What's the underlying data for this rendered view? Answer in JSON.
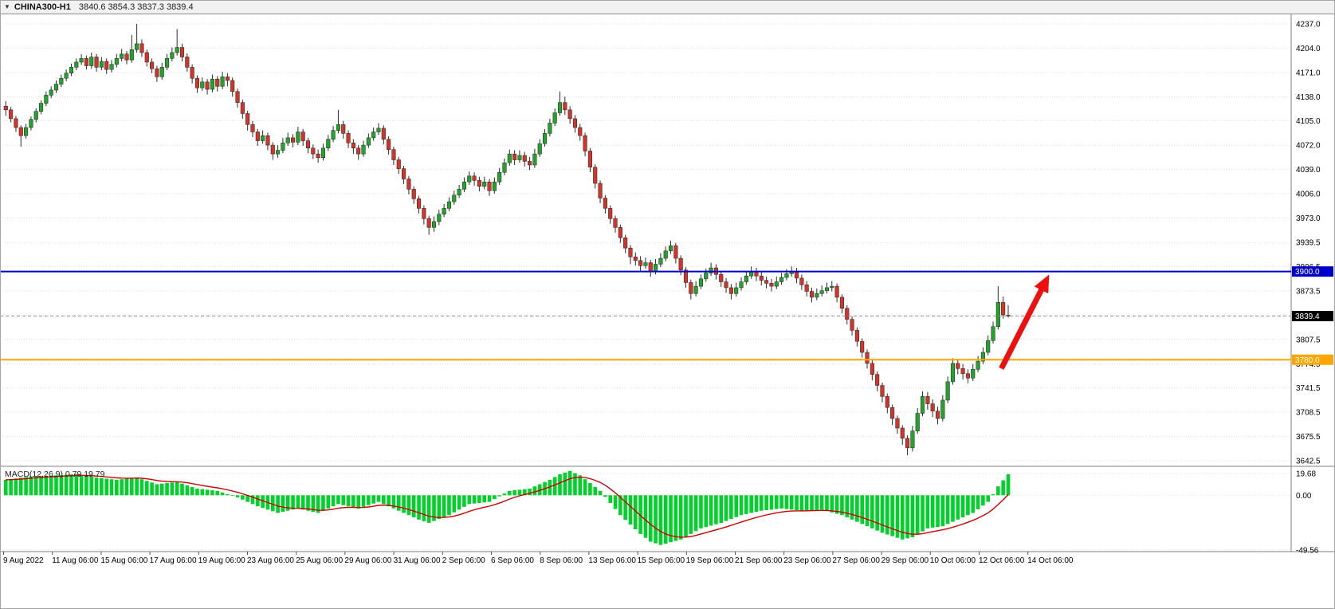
{
  "header": {
    "dropdown_icon": "▼",
    "title": "CHINA300-H1",
    "quote": "3840.6 3854.3 3837.3 3839.4"
  },
  "chart_data": {
    "type": "candlestick",
    "symbol": "CHINA300-",
    "timeframe": "H1",
    "ohlc_current": {
      "open": 3840.6,
      "high": 3854.3,
      "low": 3837.3,
      "close": 3839.4
    },
    "price_axis": {
      "ylim": [
        3642.5,
        4237.0
      ],
      "grid": "dotted",
      "ticks": [
        "4237.0",
        "4204.0",
        "4171.0",
        "4138.0",
        "4105.0",
        "4072.0",
        "4039.0",
        "4006.0",
        "3973.0",
        "3939.5",
        "3906.5",
        "3873.5",
        "3840.5",
        "3807.5",
        "3774.5",
        "3741.5",
        "3708.5",
        "3675.5",
        "3642.5"
      ]
    },
    "time_axis": {
      "labels": [
        "9 Aug 2022",
        "11 Aug 06:00",
        "15 Aug 06:00",
        "17 Aug 06:00",
        "19 Aug 06:00",
        "23 Aug 06:00",
        "25 Aug 06:00",
        "29 Aug 06:00",
        "31 Aug 06:00",
        "2 Sep 06:00",
        "6 Sep 06:00",
        "8 Sep 06:00",
        "13 Sep 06:00",
        "15 Sep 06:00",
        "19 Sep 06:00",
        "21 Sep 06:00",
        "23 Sep 06:00",
        "27 Sep 06:00",
        "29 Sep 06:00",
        "10 Oct 06:00",
        "12 Oct 06:00",
        "14 Oct 06:00"
      ]
    },
    "colors": {
      "background": "#ffffff",
      "grid": "#dedede",
      "axis_text": "#000000",
      "up": "#23a32c",
      "down": "#cf352b",
      "wick": "#2b2b2b",
      "body_outline": "#222222"
    },
    "candles": [
      [
        4125,
        4132,
        4112,
        4120
      ],
      [
        4120,
        4124,
        4103,
        4108
      ],
      [
        4108,
        4112,
        4090,
        4096
      ],
      [
        4096,
        4099,
        4070,
        4085
      ],
      [
        4085,
        4101,
        4081,
        4096
      ],
      [
        4096,
        4111,
        4092,
        4107
      ],
      [
        4107,
        4122,
        4103,
        4118
      ],
      [
        4118,
        4133,
        4114,
        4129
      ],
      [
        4129,
        4145,
        4125,
        4140
      ],
      [
        4140,
        4152,
        4136,
        4147
      ],
      [
        4147,
        4160,
        4143,
        4155
      ],
      [
        4155,
        4168,
        4151,
        4163
      ],
      [
        4163,
        4175,
        4159,
        4170
      ],
      [
        4170,
        4183,
        4166,
        4178
      ],
      [
        4178,
        4190,
        4174,
        4185
      ],
      [
        4185,
        4196,
        4181,
        4190
      ],
      [
        4190,
        4194,
        4175,
        4180
      ],
      [
        4180,
        4198,
        4176,
        4192
      ],
      [
        4192,
        4196,
        4172,
        4178
      ],
      [
        4178,
        4192,
        4174,
        4186
      ],
      [
        4186,
        4190,
        4169,
        4175
      ],
      [
        4175,
        4188,
        4171,
        4182
      ],
      [
        4182,
        4196,
        4178,
        4190
      ],
      [
        4190,
        4203,
        4186,
        4196
      ],
      [
        4196,
        4200,
        4182,
        4188
      ],
      [
        4188,
        4222,
        4184,
        4202
      ],
      [
        4202,
        4237,
        4198,
        4210
      ],
      [
        4210,
        4216,
        4192,
        4198
      ],
      [
        4198,
        4202,
        4179,
        4185
      ],
      [
        4185,
        4190,
        4170,
        4176
      ],
      [
        4176,
        4180,
        4158,
        4165
      ],
      [
        4165,
        4184,
        4161,
        4178
      ],
      [
        4178,
        4196,
        4174,
        4190
      ],
      [
        4190,
        4205,
        4186,
        4198
      ],
      [
        4198,
        4230,
        4194,
        4205
      ],
      [
        4205,
        4210,
        4186,
        4192
      ],
      [
        4192,
        4197,
        4172,
        4178
      ],
      [
        4178,
        4182,
        4156,
        4163
      ],
      [
        4163,
        4167,
        4143,
        4150
      ],
      [
        4150,
        4164,
        4146,
        4158
      ],
      [
        4158,
        4162,
        4141,
        4148
      ],
      [
        4148,
        4168,
        4144,
        4162
      ],
      [
        4162,
        4166,
        4145,
        4152
      ],
      [
        4152,
        4172,
        4148,
        4165
      ],
      [
        4165,
        4170,
        4152,
        4160
      ],
      [
        4160,
        4164,
        4138,
        4145
      ],
      [
        4145,
        4149,
        4123,
        4130
      ],
      [
        4130,
        4134,
        4108,
        4115
      ],
      [
        4115,
        4119,
        4092,
        4100
      ],
      [
        4100,
        4105,
        4083,
        4090
      ],
      [
        4090,
        4094,
        4071,
        4078
      ],
      [
        4078,
        4092,
        4074,
        4085
      ],
      [
        4085,
        4089,
        4065,
        4072
      ],
      [
        4072,
        4076,
        4052,
        4060
      ],
      [
        4060,
        4072,
        4055,
        4065
      ],
      [
        4065,
        4082,
        4061,
        4075
      ],
      [
        4075,
        4089,
        4071,
        4082
      ],
      [
        4082,
        4087,
        4069,
        4076
      ],
      [
        4076,
        4097,
        4072,
        4090
      ],
      [
        4090,
        4094,
        4071,
        4078
      ],
      [
        4078,
        4082,
        4061,
        4068
      ],
      [
        4068,
        4073,
        4053,
        4060
      ],
      [
        4060,
        4066,
        4048,
        4055
      ],
      [
        4055,
        4074,
        4051,
        4068
      ],
      [
        4068,
        4086,
        4064,
        4080
      ],
      [
        4080,
        4098,
        4076,
        4092
      ],
      [
        4092,
        4120,
        4088,
        4100
      ],
      [
        4100,
        4105,
        4081,
        4088
      ],
      [
        4088,
        4092,
        4068,
        4075
      ],
      [
        4075,
        4080,
        4060,
        4068
      ],
      [
        4068,
        4072,
        4052,
        4060
      ],
      [
        4060,
        4078,
        4056,
        4072
      ],
      [
        4072,
        4088,
        4068,
        4082
      ],
      [
        4082,
        4096,
        4078,
        4090
      ],
      [
        4090,
        4102,
        4086,
        4095
      ],
      [
        4095,
        4099,
        4073,
        4080
      ],
      [
        4080,
        4084,
        4059,
        4066
      ],
      [
        4066,
        4070,
        4045,
        4052
      ],
      [
        4052,
        4056,
        4033,
        4040
      ],
      [
        4040,
        4044,
        4019,
        4026
      ],
      [
        4026,
        4030,
        4005,
        4012
      ],
      [
        4012,
        4016,
        3992,
        3999
      ],
      [
        3999,
        4003,
        3979,
        3986
      ],
      [
        3986,
        3990,
        3964,
        3972
      ],
      [
        3972,
        3976,
        3950,
        3960
      ],
      [
        3960,
        3975,
        3954,
        3968
      ],
      [
        3968,
        3984,
        3963,
        3978
      ],
      [
        3978,
        3992,
        3974,
        3986
      ],
      [
        3986,
        4001,
        3982,
        3995
      ],
      [
        3995,
        4010,
        3991,
        4004
      ],
      [
        4004,
        4018,
        4000,
        4012
      ],
      [
        4012,
        4028,
        4008,
        4022
      ],
      [
        4022,
        4036,
        4018,
        4030
      ],
      [
        4030,
        4035,
        4017,
        4024
      ],
      [
        4024,
        4029,
        4009,
        4016
      ],
      [
        4016,
        4029,
        4012,
        4022
      ],
      [
        4022,
        4026,
        4003,
        4010
      ],
      [
        4010,
        4028,
        4006,
        4022
      ],
      [
        4022,
        4041,
        4018,
        4035
      ],
      [
        4035,
        4054,
        4031,
        4048
      ],
      [
        4048,
        4066,
        4044,
        4060
      ],
      [
        4060,
        4065,
        4045,
        4052
      ],
      [
        4052,
        4065,
        4048,
        4058
      ],
      [
        4058,
        4063,
        4043,
        4050
      ],
      [
        4050,
        4056,
        4038,
        4045
      ],
      [
        4045,
        4067,
        4041,
        4060
      ],
      [
        4060,
        4080,
        4056,
        4074
      ],
      [
        4074,
        4094,
        4070,
        4088
      ],
      [
        4088,
        4108,
        4084,
        4102
      ],
      [
        4102,
        4122,
        4098,
        4116
      ],
      [
        4116,
        4145,
        4112,
        4130
      ],
      [
        4130,
        4138,
        4113,
        4120
      ],
      [
        4120,
        4125,
        4101,
        4108
      ],
      [
        4108,
        4113,
        4089,
        4096
      ],
      [
        4096,
        4101,
        4078,
        4085
      ],
      [
        4085,
        4089,
        4057,
        4064
      ],
      [
        4064,
        4068,
        4035,
        4042
      ],
      [
        4042,
        4046,
        4013,
        4020
      ],
      [
        4020,
        4024,
        3993,
        4000
      ],
      [
        4000,
        4004,
        3979,
        3986
      ],
      [
        3986,
        3990,
        3965,
        3972
      ],
      [
        3972,
        3976,
        3953,
        3960
      ],
      [
        3960,
        3964,
        3939,
        3946
      ],
      [
        3946,
        3950,
        3925,
        3932
      ],
      [
        3932,
        3936,
        3910,
        3920
      ],
      [
        3920,
        3926,
        3908,
        3915
      ],
      [
        3915,
        3921,
        3901,
        3908
      ],
      [
        3908,
        3919,
        3904,
        3912
      ],
      [
        3912,
        3916,
        3893,
        3900
      ],
      [
        3900,
        3917,
        3896,
        3910
      ],
      [
        3910,
        3925,
        3906,
        3918
      ],
      [
        3918,
        3934,
        3914,
        3928
      ],
      [
        3928,
        3942,
        3924,
        3935
      ],
      [
        3935,
        3939,
        3911,
        3918
      ],
      [
        3918,
        3922,
        3895,
        3902
      ],
      [
        3902,
        3906,
        3878,
        3885
      ],
      [
        3885,
        3889,
        3862,
        3870
      ],
      [
        3870,
        3887,
        3866,
        3880
      ],
      [
        3880,
        3896,
        3876,
        3890
      ],
      [
        3890,
        3904,
        3886,
        3898
      ],
      [
        3898,
        3912,
        3894,
        3905
      ],
      [
        3905,
        3910,
        3889,
        3896
      ],
      [
        3896,
        3900,
        3879,
        3886
      ],
      [
        3886,
        3891,
        3871,
        3878
      ],
      [
        3878,
        3883,
        3862,
        3870
      ],
      [
        3870,
        3885,
        3866,
        3878
      ],
      [
        3878,
        3892,
        3874,
        3886
      ],
      [
        3886,
        3900,
        3882,
        3894
      ],
      [
        3894,
        3907,
        3890,
        3900
      ],
      [
        3900,
        3905,
        3887,
        3894
      ],
      [
        3894,
        3899,
        3881,
        3888
      ],
      [
        3888,
        3893,
        3877,
        3884
      ],
      [
        3884,
        3890,
        3873,
        3880
      ],
      [
        3880,
        3893,
        3876,
        3886
      ],
      [
        3886,
        3898,
        3882,
        3892
      ],
      [
        3892,
        3903,
        3888,
        3897
      ],
      [
        3897,
        3907,
        3893,
        3900
      ],
      [
        3900,
        3905,
        3884,
        3891
      ],
      [
        3891,
        3896,
        3875,
        3882
      ],
      [
        3882,
        3887,
        3866,
        3873
      ],
      [
        3873,
        3878,
        3858,
        3865
      ],
      [
        3865,
        3877,
        3861,
        3870
      ],
      [
        3870,
        3881,
        3866,
        3874
      ],
      [
        3874,
        3885,
        3870,
        3878
      ],
      [
        3878,
        3887,
        3873,
        3880
      ],
      [
        3880,
        3884,
        3858,
        3865
      ],
      [
        3865,
        3869,
        3843,
        3850
      ],
      [
        3850,
        3854,
        3828,
        3835
      ],
      [
        3835,
        3839,
        3813,
        3820
      ],
      [
        3820,
        3824,
        3798,
        3805
      ],
      [
        3805,
        3809,
        3783,
        3790
      ],
      [
        3790,
        3794,
        3768,
        3775
      ],
      [
        3775,
        3779,
        3752,
        3760
      ],
      [
        3760,
        3764,
        3737,
        3745
      ],
      [
        3745,
        3749,
        3722,
        3730
      ],
      [
        3730,
        3734,
        3707,
        3715
      ],
      [
        3715,
        3719,
        3691,
        3700
      ],
      [
        3700,
        3704,
        3679,
        3687
      ],
      [
        3687,
        3691,
        3664,
        3673
      ],
      [
        3673,
        3677,
        3650,
        3660
      ],
      [
        3660,
        3690,
        3655,
        3683
      ],
      [
        3683,
        3714,
        3679,
        3707
      ],
      [
        3707,
        3737,
        3703,
        3730
      ],
      [
        3730,
        3736,
        3712,
        3720
      ],
      [
        3720,
        3726,
        3702,
        3710
      ],
      [
        3710,
        3716,
        3692,
        3700
      ],
      [
        3700,
        3732,
        3696,
        3725
      ],
      [
        3725,
        3757,
        3721,
        3750
      ],
      [
        3750,
        3782,
        3746,
        3775
      ],
      [
        3775,
        3781,
        3760,
        3768
      ],
      [
        3768,
        3774,
        3753,
        3761
      ],
      [
        3761,
        3767,
        3748,
        3755
      ],
      [
        3755,
        3774,
        3751,
        3767
      ],
      [
        3767,
        3785,
        3763,
        3778
      ],
      [
        3778,
        3797,
        3774,
        3790
      ],
      [
        3790,
        3813,
        3786,
        3806
      ],
      [
        3806,
        3832,
        3802,
        3825
      ],
      [
        3825,
        3880,
        3821,
        3858
      ],
      [
        3858,
        3866,
        3836,
        3841
      ],
      [
        3840.6,
        3854.3,
        3837.3,
        3839.4
      ]
    ],
    "levels": [
      {
        "name": "resistance-line",
        "price": 3900.0,
        "label": "3900.0",
        "color": "#0000cd",
        "label_bg": "#0000cd",
        "style": "solid",
        "width": 2
      },
      {
        "name": "support-line",
        "price": 3780.0,
        "label": "3780.0",
        "color": "#ffa500",
        "label_bg": "#ffa500",
        "style": "solid",
        "width": 2
      },
      {
        "name": "bid-price-line",
        "price": 3839.4,
        "label": "3839.4",
        "color": "#9a9a9a",
        "label_bg": "#000000",
        "style": "dashed",
        "width": 1
      }
    ],
    "annotation_arrow": {
      "color": "#ee0f0f",
      "from": {
        "index": 198,
        "price": 3768
      },
      "to": {
        "index": 207.5,
        "price": 3896
      }
    },
    "indicator": {
      "label": "MACD(12,26,9) 0.79 19.79",
      "ylim": [
        -49.56,
        24
      ],
      "ticks": [
        "19.68",
        "0.00",
        "-49.56"
      ],
      "signal_period": 9,
      "colors": {
        "histogram": "#00d22a",
        "signal": "#cc0000"
      },
      "histogram": [
        14,
        14.6,
        15.2,
        15.8,
        16.4,
        17,
        17.2,
        17.4,
        17.6,
        17.8,
        18,
        18.3,
        18.5,
        18.8,
        19,
        18.3,
        17.5,
        16.8,
        16,
        15.5,
        15,
        14.5,
        14,
        14.5,
        15,
        15.5,
        16,
        14.5,
        13,
        11.5,
        10,
        10.5,
        11,
        11.5,
        12,
        10.5,
        9,
        7.5,
        6,
        5.5,
        5,
        4.5,
        4,
        2.5,
        1,
        -0.5,
        -2,
        -4,
        -6,
        -8,
        -10,
        -11.5,
        -13,
        -14.5,
        -16,
        -15,
        -14,
        -13,
        -12,
        -13,
        -14,
        -15,
        -16,
        -14,
        -12,
        -10,
        -8,
        -9,
        -10,
        -11,
        -12,
        -10.5,
        -9,
        -7.5,
        -6,
        -8,
        -10,
        -12,
        -14,
        -16,
        -18,
        -20,
        -22,
        -23.5,
        -25,
        -23.3,
        -21.5,
        -19.8,
        -18,
        -15.5,
        -13,
        -10.5,
        -8,
        -7.5,
        -7,
        -6.5,
        -6,
        -3.5,
        -1,
        1.5,
        4,
        4.5,
        5,
        5.5,
        6,
        8,
        10,
        12,
        14,
        16.5,
        19,
        20.5,
        22,
        20,
        18,
        14.5,
        11,
        7.5,
        4,
        -1.5,
        -7,
        -12.5,
        -18,
        -22.3,
        -26.5,
        -30.8,
        -35,
        -38.5,
        -42,
        -43.5,
        -45,
        -43.8,
        -42.5,
        -41.3,
        -40,
        -37.5,
        -35,
        -32.5,
        -30,
        -28.8,
        -27.5,
        -26.3,
        -25,
        -23.3,
        -21.5,
        -19.8,
        -18,
        -17,
        -16,
        -15,
        -14,
        -13.5,
        -13,
        -12.5,
        -12,
        -12.5,
        -13,
        -13.5,
        -14,
        -13.8,
        -13.5,
        -13.3,
        -13,
        -14.3,
        -15.5,
        -16.8,
        -18,
        -20,
        -22,
        -24,
        -26,
        -28,
        -30,
        -32,
        -34,
        -35.5,
        -37,
        -38.5,
        -40,
        -39,
        -38,
        -35.3,
        -32.7,
        -30,
        -29.3,
        -28.7,
        -28,
        -26,
        -24,
        -22,
        -20,
        -18,
        -16,
        -12.7,
        -9.3,
        -6,
        1,
        8,
        13.5,
        19
      ]
    }
  }
}
